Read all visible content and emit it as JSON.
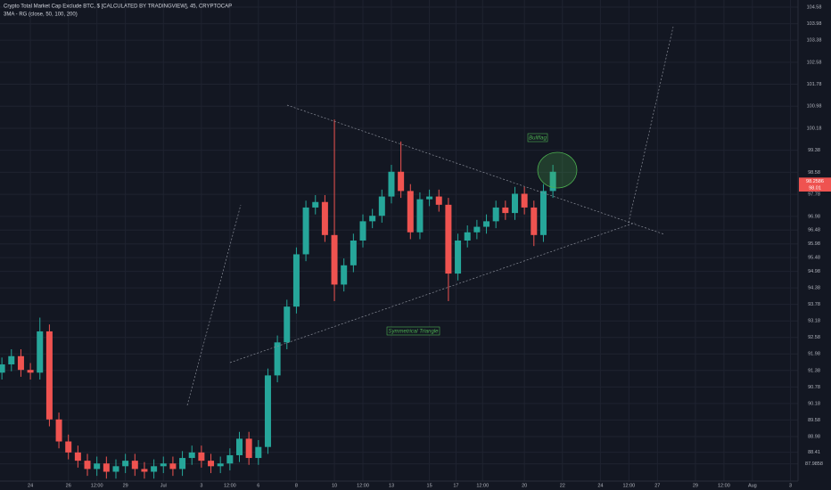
{
  "chart_data": {
    "type": "candlestick",
    "title": "Crypto Total Market Cap Exclude BTC, $ [CALCULATED BY TRADINGVIEW], 45, CRYPTOCAP",
    "subtitle": "3MA - RG (close, 50, 100, 200)",
    "annotations": [
      "Bullflag",
      "Symmetrical Triangle"
    ],
    "up_color": "#26a69a",
    "down_color": "#ef5350",
    "grid": true,
    "xlim": [
      -1.6,
      40.4
    ],
    "ylim": [
      87.36,
      104.84
    ],
    "xticks": [
      {
        "value": 0,
        "label": "24"
      },
      {
        "value": 2,
        "label": "26"
      },
      {
        "value": 3.5,
        "label": "12:00"
      },
      {
        "value": 5,
        "label": "29"
      },
      {
        "value": 7,
        "label": "Jul"
      },
      {
        "value": 9,
        "label": "3"
      },
      {
        "value": 10.5,
        "label": "12:00"
      },
      {
        "value": 12,
        "label": "6"
      },
      {
        "value": 14,
        "label": "8"
      },
      {
        "value": 16,
        "label": "10"
      },
      {
        "value": 17.5,
        "label": "12:00"
      },
      {
        "value": 19,
        "label": "13"
      },
      {
        "value": 21,
        "label": "15"
      },
      {
        "value": 22.4,
        "label": "17"
      },
      {
        "value": 23.8,
        "label": "12:00"
      },
      {
        "value": 26,
        "label": "20"
      },
      {
        "value": 28,
        "label": "22"
      },
      {
        "value": 30,
        "label": "24"
      },
      {
        "value": 31.5,
        "label": "12:00"
      },
      {
        "value": 33,
        "label": "27"
      },
      {
        "value": 35,
        "label": "29"
      },
      {
        "value": 36.5,
        "label": "12:00"
      },
      {
        "value": 38,
        "label": "Aug"
      },
      {
        "value": 40,
        "label": "3"
      }
    ],
    "yticks": [
      104.58,
      103.98,
      103.38,
      102.58,
      101.78,
      100.98,
      100.18,
      99.38,
      98.58,
      97.78,
      96.98,
      96.48,
      95.98,
      95.48,
      94.98,
      94.38,
      93.78,
      93.18,
      92.58,
      91.98,
      91.38,
      90.78,
      90.18,
      89.58,
      88.98,
      88.41,
      87.9858
    ],
    "price_labels": [
      {
        "value": 98.2586,
        "label": "98.2586"
      },
      {
        "value": 98.01,
        "label": "98.01"
      }
    ],
    "x": [
      -1.5,
      -1,
      -0.5,
      0,
      0.5,
      1,
      1.5,
      2,
      2.5,
      3,
      3.5,
      4,
      4.5,
      5,
      5.5,
      6,
      6.5,
      7,
      7.5,
      8,
      8.5,
      9,
      9.5,
      10,
      10.5,
      11,
      11.5,
      12,
      12.5,
      13,
      13.5,
      14,
      14.5,
      15,
      15.5,
      16,
      16.5,
      17,
      17.5,
      18,
      18.5,
      19,
      19.5,
      20,
      20.5,
      21,
      21.5,
      22,
      22.5,
      23,
      23.5,
      24,
      24.5,
      25,
      25.5,
      26,
      26.5,
      27,
      27.5
    ],
    "open": [
      91.3,
      91.6,
      91.9,
      91.4,
      91.3,
      92.8,
      89.6,
      88.8,
      88.4,
      88.1,
      87.8,
      88.0,
      87.7,
      87.9,
      88.1,
      87.8,
      87.7,
      87.9,
      88.0,
      87.8,
      88.2,
      88.4,
      88.1,
      87.9,
      88.0,
      88.3,
      88.9,
      88.2,
      88.6,
      91.2,
      92.4,
      93.7,
      95.6,
      97.3,
      97.5,
      96.3,
      94.5,
      95.2,
      96.1,
      96.8,
      97.0,
      97.7,
      98.6,
      97.9,
      96.4,
      97.6,
      97.7,
      97.4,
      94.9,
      96.1,
      96.4,
      96.6,
      96.8,
      97.3,
      97.1,
      97.8,
      97.3,
      96.3,
      97.9
    ],
    "high": [
      91.85,
      92.15,
      92.15,
      91.65,
      93.3,
      93.05,
      89.85,
      89.05,
      88.65,
      88.35,
      88.25,
      88.25,
      88.15,
      88.35,
      88.35,
      88.05,
      88.15,
      88.25,
      88.25,
      88.45,
      88.65,
      88.65,
      88.35,
      88.25,
      88.55,
      89.15,
      89.15,
      88.85,
      91.45,
      92.65,
      93.95,
      95.85,
      97.55,
      97.75,
      97.75,
      100.5,
      95.45,
      96.35,
      97.05,
      97.25,
      97.95,
      98.85,
      99.7,
      98.15,
      97.85,
      97.95,
      97.95,
      97.65,
      96.35,
      96.65,
      96.85,
      97.05,
      97.55,
      97.55,
      98.05,
      98.05,
      97.55,
      98.15,
      98.85
    ],
    "low": [
      91.05,
      91.35,
      91.15,
      91.05,
      91.05,
      89.35,
      88.55,
      88.15,
      87.85,
      87.55,
      87.55,
      87.45,
      87.45,
      87.65,
      87.55,
      87.45,
      87.45,
      87.65,
      87.55,
      87.55,
      87.95,
      87.85,
      87.65,
      87.65,
      87.75,
      88.05,
      87.95,
      87.95,
      88.35,
      90.95,
      92.15,
      93.45,
      95.35,
      97.05,
      96.05,
      93.9,
      94.25,
      94.95,
      95.85,
      96.55,
      96.75,
      97.45,
      97.65,
      96.15,
      96.15,
      97.35,
      97.15,
      93.9,
      94.65,
      95.85,
      96.15,
      96.35,
      96.55,
      96.85,
      96.85,
      97.05,
      95.9,
      96.05,
      97.65
    ],
    "close": [
      91.6,
      91.9,
      91.4,
      91.3,
      92.8,
      89.6,
      88.8,
      88.4,
      88.1,
      87.8,
      88.0,
      87.7,
      87.9,
      88.1,
      87.8,
      87.7,
      87.9,
      88.0,
      87.8,
      88.2,
      88.4,
      88.1,
      87.9,
      88.0,
      88.3,
      88.9,
      88.2,
      88.6,
      91.2,
      92.4,
      93.7,
      95.6,
      97.3,
      97.5,
      96.3,
      94.5,
      95.2,
      96.1,
      96.8,
      97.0,
      97.7,
      98.6,
      97.9,
      96.4,
      97.6,
      97.7,
      97.4,
      94.9,
      96.1,
      96.4,
      96.6,
      96.8,
      97.3,
      97.1,
      97.8,
      97.3,
      96.3,
      97.9,
      98.6
    ]
  }
}
